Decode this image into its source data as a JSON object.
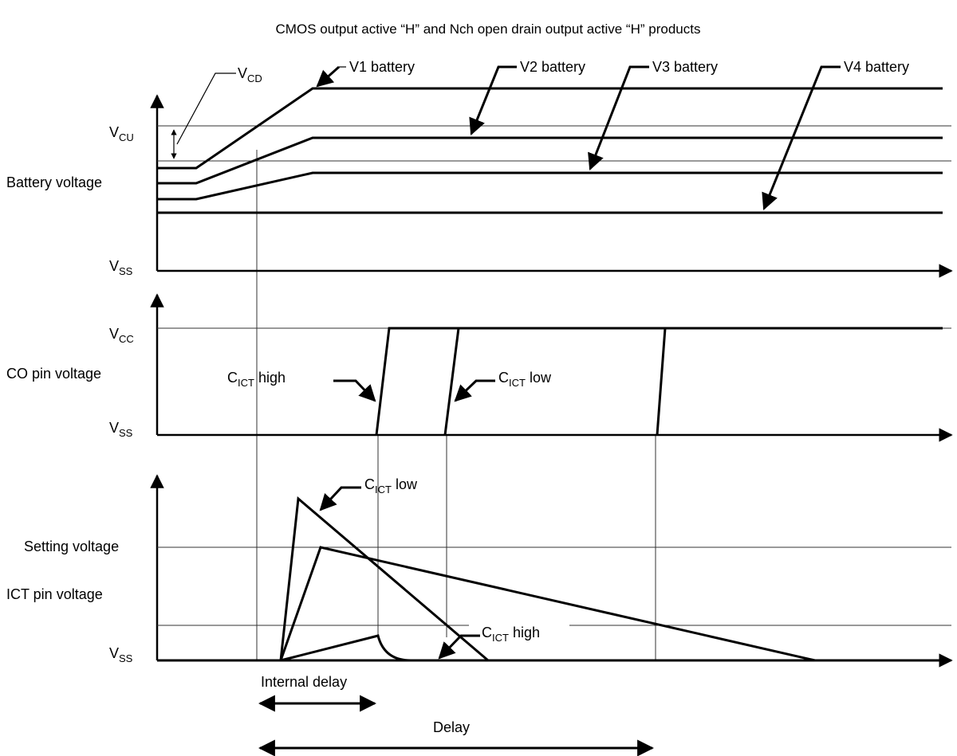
{
  "title": "CMOS output active “H” and Nch open drain output active “H” products",
  "battery_panel": {
    "y_axis_label": "Battery voltage",
    "vcu": {
      "main": "V",
      "sub": "CU"
    },
    "vss": {
      "main": "V",
      "sub": "SS"
    },
    "vcd": {
      "main": "V",
      "sub": "CD"
    },
    "batteries": [
      "V1 battery",
      "V2 battery",
      "V3 battery",
      "V4 battery"
    ]
  },
  "co_panel": {
    "y_axis_label": "CO pin voltage",
    "vcc": {
      "main": "V",
      "sub": "CC"
    },
    "vss": {
      "main": "V",
      "sub": "SS"
    },
    "cict_high": {
      "main": "C",
      "sub": "ICT",
      "rest": " high"
    },
    "cict_low": {
      "main": "C",
      "sub": "ICT",
      "rest": " low"
    }
  },
  "ict_panel": {
    "setting_voltage": "Setting voltage",
    "y_axis_label": "ICT pin voltage",
    "vss": {
      "main": "V",
      "sub": "SS"
    },
    "cict_low": {
      "main": "C",
      "sub": "ICT",
      "rest": " low"
    },
    "cict_high": {
      "main": "C",
      "sub": "ICT",
      "rest": " high"
    }
  },
  "timing": {
    "internal_delay": "Internal delay",
    "delay": "Delay"
  }
}
